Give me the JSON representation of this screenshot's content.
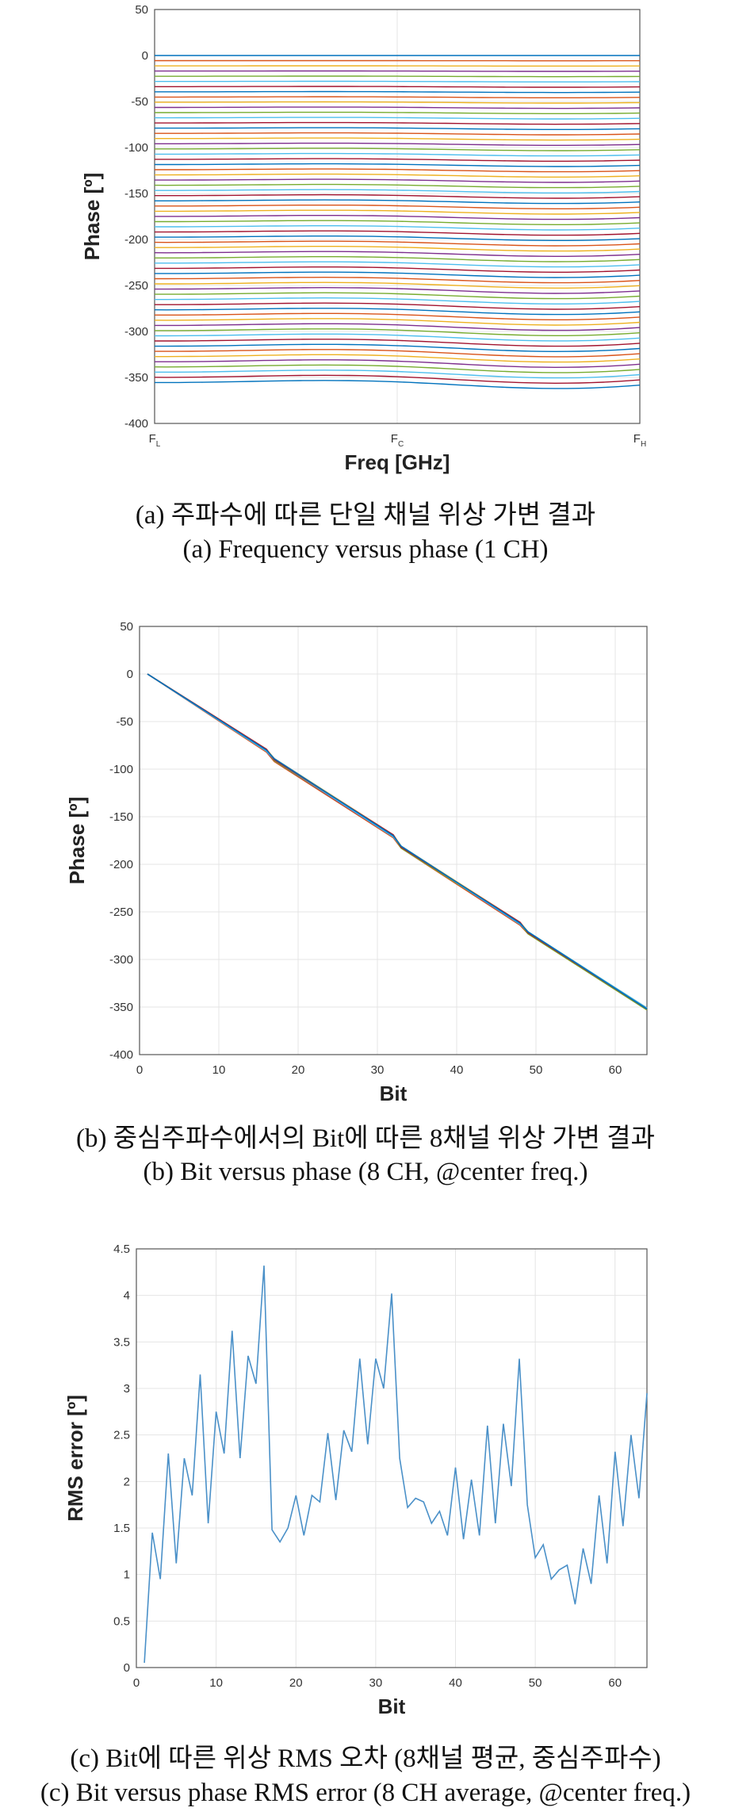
{
  "charts": [
    {
      "chart_data": {
        "type": "line",
        "title": "",
        "xlabel": "Freq [GHz]",
        "ylabel": "Phase [º]",
        "x_tick_labels": [
          "F_L",
          "F_C",
          "F_H"
        ],
        "ylim": [
          -400,
          50
        ],
        "yticks": [
          50,
          0,
          -50,
          -100,
          -150,
          -200,
          -250,
          -300,
          -350,
          -400
        ],
        "grid": true,
        "series_count": 64,
        "series_description_note": "",
        "series": [
          {
            "start": 0
          },
          {
            "start": -5.625
          },
          {
            "start": -11.25
          },
          {
            "start": -16.875
          },
          {
            "start": -22.5
          },
          {
            "start": -28.125
          },
          {
            "start": -33.75
          },
          {
            "start": -39.375
          },
          {
            "start": -45
          },
          {
            "start": -50.625
          },
          {
            "start": -56.25
          },
          {
            "start": -61.875
          },
          {
            "start": -67.5
          },
          {
            "start": -73.125
          },
          {
            "start": -78.75
          },
          {
            "start": -84.375
          },
          {
            "start": -90
          },
          {
            "start": -95.625
          },
          {
            "start": -101.25
          },
          {
            "start": -106.875
          },
          {
            "start": -112.5
          },
          {
            "start": -118.125
          },
          {
            "start": -123.75
          },
          {
            "start": -129.375
          },
          {
            "start": -135
          },
          {
            "start": -140.625
          },
          {
            "start": -146.25
          },
          {
            "start": -151.875
          },
          {
            "start": -157.5
          },
          {
            "start": -163.125
          },
          {
            "start": -168.75
          },
          {
            "start": -174.375
          },
          {
            "start": -180
          },
          {
            "start": -185.625
          },
          {
            "start": -191.25
          },
          {
            "start": -196.875
          },
          {
            "start": -202.5
          },
          {
            "start": -208.125
          },
          {
            "start": -213.75
          },
          {
            "start": -219.375
          },
          {
            "start": -225
          },
          {
            "start": -230.625
          },
          {
            "start": -236.25
          },
          {
            "start": -241.875
          },
          {
            "start": -247.5
          },
          {
            "start": -253.125
          },
          {
            "start": -258.75
          },
          {
            "start": -264.375
          },
          {
            "start": -270
          },
          {
            "start": -275.625
          },
          {
            "start": -281.25
          },
          {
            "start": -286.875
          },
          {
            "start": -292.5
          },
          {
            "start": -298.125
          },
          {
            "start": -303.75
          },
          {
            "start": -309.375
          },
          {
            "start": -315
          },
          {
            "start": -320.625
          },
          {
            "start": -326.25
          },
          {
            "start": -331.875
          },
          {
            "start": -337.5
          },
          {
            "start": -343.125
          },
          {
            "start": -348.75
          },
          {
            "start": -354.375
          }
        ]
      },
      "caption_ko": "(a) 주파수에 따른 단일 채널 위상 가변 결과",
      "caption_en": "(a) Frequency versus phase (1 CH)"
    },
    {
      "chart_data": {
        "type": "line",
        "title": "",
        "xlabel": "Bit",
        "ylabel": "Phase [º]",
        "xlim": [
          0,
          64
        ],
        "xticks": [
          0,
          10,
          20,
          30,
          40,
          50,
          60
        ],
        "ylim": [
          -400,
          50
        ],
        "yticks": [
          50,
          0,
          -50,
          -100,
          -150,
          -200,
          -250,
          -300,
          -350,
          -400
        ],
        "grid": true,
        "series": [
          {
            "x": [
              1,
              16,
              17,
              32,
              33,
              48,
              49,
              64
            ],
            "y": [
              0,
              -80,
              -90,
              -170,
              -182,
              -262,
              -272,
              -352
            ]
          },
          {
            "x": [
              1,
              16,
              17,
              32,
              33,
              48,
              49,
              64
            ],
            "y": [
              0,
              -82,
              -92,
              -172,
              -183,
              -264,
              -273,
              -353
            ]
          },
          {
            "x": [
              1,
              16,
              17,
              32,
              33,
              48,
              49,
              64
            ],
            "y": [
              0,
              -79,
              -89,
              -169,
              -181,
              -261,
              -271,
              -351
            ]
          },
          {
            "x": [
              1,
              16,
              17,
              32,
              33,
              48,
              49,
              64
            ],
            "y": [
              0,
              -81,
              -91,
              -171,
              -182,
              -263,
              -272,
              -352
            ]
          },
          {
            "x": [
              1,
              16,
              17,
              32,
              33,
              48,
              49,
              64
            ],
            "y": [
              0,
              -80,
              -91,
              -170,
              -183,
              -262,
              -273,
              -353
            ]
          },
          {
            "x": [
              1,
              16,
              17,
              32,
              33,
              48,
              49,
              64
            ],
            "y": [
              0,
              -81,
              -90,
              -171,
              -181,
              -263,
              -271,
              -351
            ]
          },
          {
            "x": [
              1,
              16,
              17,
              32,
              33,
              48,
              49,
              64
            ],
            "y": [
              0,
              -79,
              -90,
              -169,
              -182,
              -261,
              -272,
              -352
            ]
          },
          {
            "x": [
              1,
              16,
              17,
              32,
              33,
              48,
              49,
              64
            ],
            "y": [
              0,
              -80,
              -89,
              -170,
              -181,
              -262,
              -271,
              -352
            ]
          }
        ]
      },
      "caption_ko": "(b) 중심주파수에서의 Bit에 따른 8채널 위상 가변 결과",
      "caption_en": "(b) Bit versus phase (8 CH, @center freq.)"
    },
    {
      "chart_data": {
        "type": "line",
        "title": "",
        "xlabel": "Bit",
        "ylabel": "RMS error [º]",
        "xlim": [
          0,
          64
        ],
        "xticks": [
          0,
          10,
          20,
          30,
          40,
          50,
          60
        ],
        "ylim": [
          0,
          4.5
        ],
        "yticks": [
          4.5,
          4,
          3.5,
          3,
          2.5,
          2,
          1.5,
          1,
          0.5,
          0
        ],
        "grid": true,
        "series": [
          {
            "x": [
              1,
              2,
              3,
              4,
              5,
              6,
              7,
              8,
              9,
              10,
              11,
              12,
              13,
              14,
              15,
              16,
              17,
              18,
              19,
              20,
              21,
              22,
              23,
              24,
              25,
              26,
              27,
              28,
              29,
              30,
              31,
              32,
              33,
              34,
              35,
              36,
              37,
              38,
              39,
              40,
              41,
              42,
              43,
              44,
              45,
              46,
              47,
              48,
              49,
              50,
              51,
              52,
              53,
              54,
              55,
              56,
              57,
              58,
              59,
              60,
              61,
              62,
              63,
              64
            ],
            "y": [
              0.05,
              1.45,
              0.95,
              2.3,
              1.12,
              2.25,
              1.85,
              3.15,
              1.55,
              2.75,
              2.3,
              3.62,
              2.25,
              3.35,
              3.05,
              4.32,
              1.48,
              1.35,
              1.5,
              1.85,
              1.42,
              1.85,
              1.78,
              2.52,
              1.8,
              2.55,
              2.32,
              3.32,
              2.4,
              3.32,
              3.0,
              4.02,
              2.25,
              1.72,
              1.82,
              1.78,
              1.55,
              1.68,
              1.42,
              2.15,
              1.38,
              2.02,
              1.42,
              2.6,
              1.55,
              2.62,
              1.95,
              3.32,
              1.75,
              1.18,
              1.32,
              0.95,
              1.05,
              1.1,
              0.68,
              1.28,
              0.9,
              1.85,
              1.12,
              2.32,
              1.52,
              2.5,
              1.82,
              2.95
            ]
          }
        ]
      },
      "caption_ko": "(c) Bit에 따른 위상 RMS 오차 (8채널 평균, 중심주파수)",
      "caption_en": "(c) Bit versus phase RMS error (8 CH average, @center freq.)"
    }
  ],
  "colors": {
    "matlab_palette": [
      "#0072BD",
      "#D95319",
      "#EDB120",
      "#7E2F8E",
      "#77AC30",
      "#4DBEEE",
      "#A2142F"
    ],
    "rms_line": "#4A90C8",
    "grid": "#e4e4e4",
    "axis": "#555555"
  }
}
